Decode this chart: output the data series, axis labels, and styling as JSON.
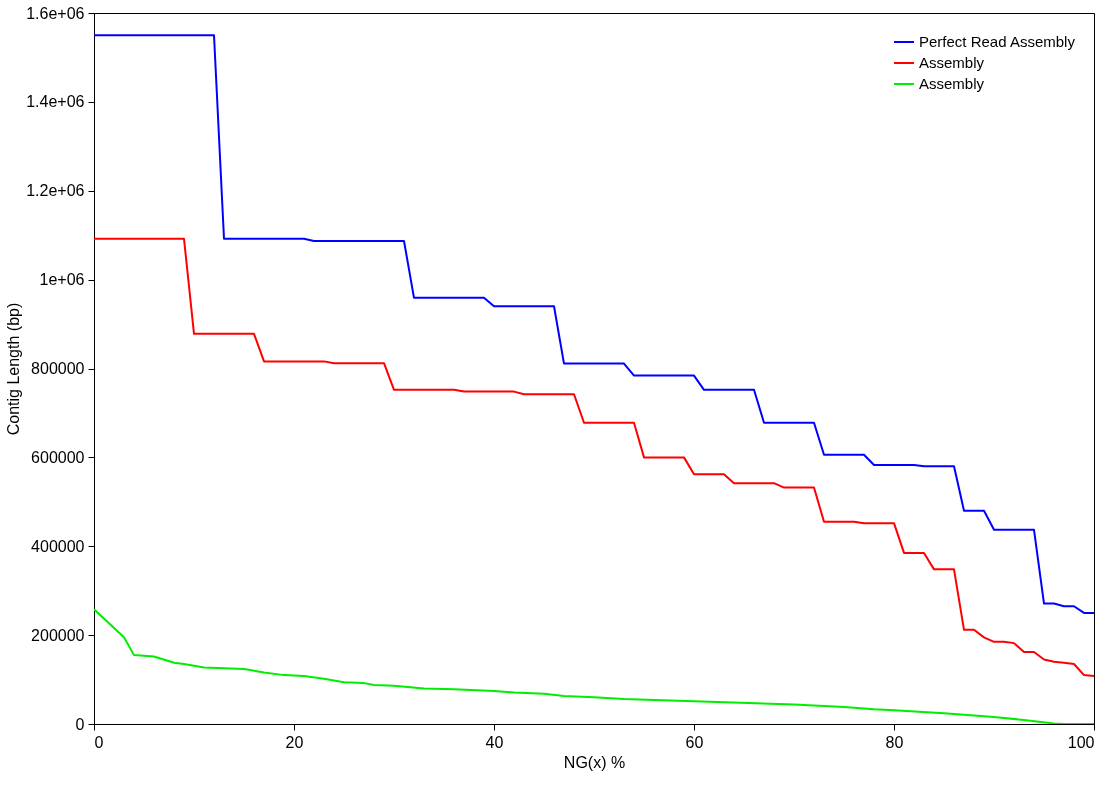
{
  "chart_data": {
    "type": "line",
    "xlabel": "NG(x) %",
    "ylabel": "Contig Length (bp)",
    "xlim": [
      0,
      100
    ],
    "xticks": [
      0,
      20,
      40,
      60,
      80,
      100
    ],
    "ylim": [
      0,
      1600000
    ],
    "yticks": [
      0,
      200000,
      400000,
      600000,
      800000,
      {
        "value": 1000000,
        "label": "1e+06"
      },
      {
        "value": 1200000,
        "label": "1.2e+06"
      },
      {
        "value": 1400000,
        "label": "1.4e+06"
      },
      {
        "value": 1600000,
        "label": "1.6e+06"
      }
    ],
    "grid": false,
    "legend": "top right",
    "marker": "none",
    "line_style": "solid",
    "series": [
      {
        "name": "Perfect Read Assembly",
        "color": "#0000ff",
        "x": [
          0,
          12,
          13,
          21,
          22,
          31,
          32,
          39,
          40,
          46,
          47,
          53,
          54,
          60,
          61,
          66,
          67,
          72,
          73,
          77,
          78,
          82,
          83,
          86,
          87,
          89,
          90,
          94,
          95,
          96,
          97,
          98,
          99,
          100
        ],
        "values": [
          1550000,
          1550000,
          1092000,
          1092000,
          1087000,
          1087000,
          959000,
          959000,
          940000,
          940000,
          811000,
          811000,
          784000,
          784000,
          752000,
          752000,
          678000,
          678000,
          606000,
          606000,
          583000,
          583000,
          580000,
          580000,
          480000,
          480000,
          437000,
          437000,
          271000,
          271000,
          265000,
          265000,
          250000,
          250000
        ]
      },
      {
        "name": "Assembly",
        "color": "#ff0000",
        "x": [
          0,
          9,
          10,
          16,
          17,
          23,
          24,
          29,
          30,
          36,
          37,
          42,
          43,
          48,
          49,
          54,
          55,
          59,
          60,
          63,
          64,
          68,
          69,
          72,
          73,
          76,
          77,
          80,
          81,
          83,
          84,
          86,
          87,
          88,
          89,
          90,
          91,
          92,
          93,
          94,
          95,
          96,
          97,
          98,
          99,
          100
        ],
        "values": [
          1092000,
          1092000,
          878000,
          878000,
          816000,
          816000,
          812000,
          812000,
          752000,
          752000,
          748000,
          748000,
          742000,
          742000,
          678000,
          678000,
          600000,
          600000,
          562000,
          562000,
          542000,
          542000,
          532000,
          532000,
          455000,
          455000,
          452000,
          452000,
          385000,
          385000,
          348000,
          348000,
          212000,
          212000,
          195000,
          185000,
          185000,
          182000,
          162000,
          162000,
          145000,
          140000,
          138000,
          135000,
          110000,
          108000
        ]
      },
      {
        "name": "Assembly",
        "color": "#00ee00",
        "x": [
          0,
          3,
          4,
          6,
          8,
          9,
          11,
          15,
          17,
          19,
          21,
          23,
          25,
          27,
          28,
          30,
          33,
          36,
          40,
          42,
          45,
          47,
          50,
          53,
          60,
          70,
          75,
          78,
          80,
          85,
          90,
          93,
          96,
          97,
          100
        ],
        "values": [
          258000,
          195000,
          155000,
          152000,
          138000,
          135000,
          127000,
          124000,
          116000,
          110000,
          108000,
          102000,
          94000,
          92000,
          88000,
          86000,
          80000,
          78000,
          74000,
          71000,
          68000,
          63000,
          60000,
          56000,
          51000,
          44000,
          38000,
          33000,
          31000,
          24000,
          16000,
          9000,
          1000,
          0,
          0
        ]
      }
    ]
  }
}
